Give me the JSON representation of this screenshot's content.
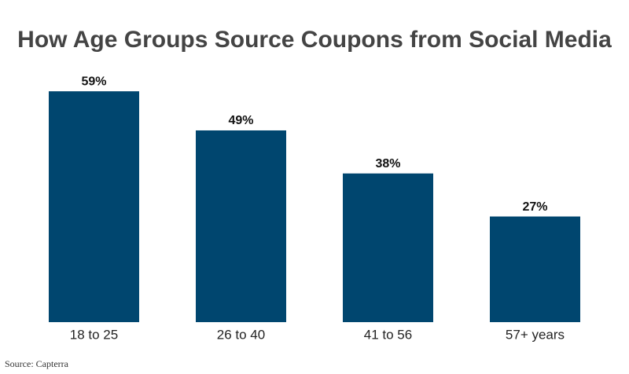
{
  "chart_data": {
    "type": "bar",
    "title": "How Age Groups Source Coupons from Social Media",
    "categories": [
      "18 to 25",
      "26 to 40",
      "41 to 56",
      "57+ years"
    ],
    "values": [
      59,
      49,
      38,
      27
    ],
    "value_labels": [
      "59%",
      "49%",
      "38%",
      "27%"
    ],
    "color": "#00466f",
    "source": "Source: Capterra"
  }
}
